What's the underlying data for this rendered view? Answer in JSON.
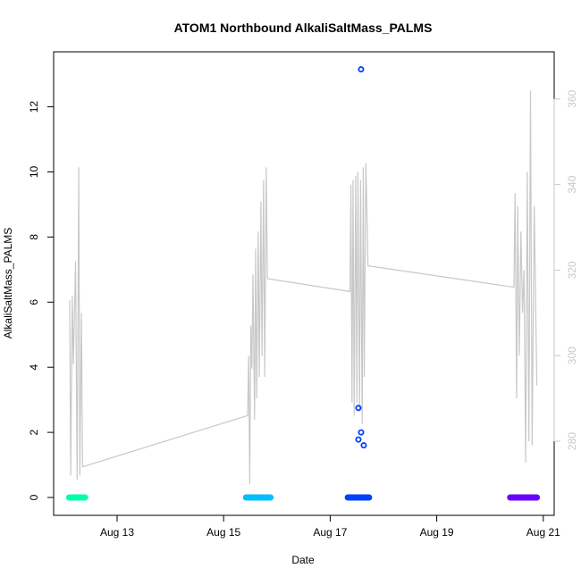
{
  "chart_data": {
    "type": "scatter",
    "title": "ATOM1 Northbound AlkaliSaltMass_PALMS",
    "xlabel": "Date",
    "ylabel": "AlkaliSaltMass_PALMS",
    "x_unit": "days since Aug 12 00:00",
    "xlim": [
      -0.2,
      9.1
    ],
    "ylim": [
      -0.55,
      13.7
    ],
    "y2lim": [
      266,
      367
    ],
    "x_ticks": [
      {
        "x": 1,
        "label": "Aug 13"
      },
      {
        "x": 3,
        "label": "Aug 15"
      },
      {
        "x": 5,
        "label": "Aug 17"
      },
      {
        "x": 7,
        "label": "Aug 19"
      },
      {
        "x": 9,
        "label": "Aug 21"
      }
    ],
    "y_ticks": [
      0,
      2,
      4,
      6,
      8,
      10,
      12
    ],
    "y2_ticks": [
      280,
      300,
      320,
      340,
      360
    ],
    "colors": {
      "axis": "#000000",
      "secondary_line": "#c8c8c8",
      "secondary_axis": "#c8c8c8"
    },
    "point_clusters": [
      {
        "color": "#00ffaa",
        "x_start": 0.1,
        "x_end": 0.4,
        "y": 0
      },
      {
        "color": "#00bfff",
        "x_start": 3.42,
        "x_end": 3.88,
        "y": 0
      },
      {
        "color": "#0040ff",
        "x_start": 5.33,
        "x_end": 5.73,
        "y": 0
      },
      {
        "color": "#6a00ff",
        "x_start": 8.38,
        "x_end": 8.88,
        "y": 0
      }
    ],
    "outliers": [
      {
        "x": 5.58,
        "y": 13.15,
        "color": "#0040ff"
      },
      {
        "x": 5.53,
        "y": 2.75,
        "color": "#0040ff"
      },
      {
        "x": 5.58,
        "y": 2.0,
        "color": "#0040ff"
      },
      {
        "x": 5.53,
        "y": 1.78,
        "color": "#0040ff"
      },
      {
        "x": 5.63,
        "y": 1.6,
        "color": "#0040ff"
      }
    ],
    "secondary_series": [
      [
        0.11,
        313
      ],
      [
        0.13,
        272
      ],
      [
        0.16,
        314
      ],
      [
        0.18,
        298
      ],
      [
        0.22,
        322
      ],
      [
        0.25,
        271
      ],
      [
        0.28,
        344
      ],
      [
        0.3,
        272
      ],
      [
        0.33,
        310
      ],
      [
        0.35,
        274
      ],
      [
        3.45,
        286
      ],
      [
        3.47,
        300
      ],
      [
        3.49,
        270
      ],
      [
        3.51,
        307
      ],
      [
        3.53,
        297
      ],
      [
        3.55,
        319
      ],
      [
        3.58,
        285
      ],
      [
        3.6,
        325
      ],
      [
        3.62,
        290
      ],
      [
        3.65,
        329
      ],
      [
        3.67,
        295
      ],
      [
        3.7,
        336
      ],
      [
        3.72,
        300
      ],
      [
        3.75,
        341
      ],
      [
        3.77,
        295
      ],
      [
        3.8,
        344
      ],
      [
        3.82,
        318
      ],
      [
        5.37,
        315
      ],
      [
        5.39,
        340
      ],
      [
        5.41,
        289
      ],
      [
        5.43,
        341
      ],
      [
        5.45,
        286
      ],
      [
        5.48,
        342
      ],
      [
        5.5,
        289
      ],
      [
        5.52,
        343
      ],
      [
        5.55,
        287
      ],
      [
        5.57,
        341
      ],
      [
        5.6,
        284
      ],
      [
        5.62,
        344
      ],
      [
        5.64,
        295
      ],
      [
        5.67,
        345
      ],
      [
        5.71,
        321
      ],
      [
        8.45,
        316
      ],
      [
        8.47,
        338
      ],
      [
        8.5,
        290
      ],
      [
        8.52,
        335
      ],
      [
        8.55,
        300
      ],
      [
        8.58,
        329
      ],
      [
        8.61,
        310
      ],
      [
        8.64,
        320
      ],
      [
        8.67,
        275
      ],
      [
        8.7,
        343
      ],
      [
        8.73,
        280
      ],
      [
        8.76,
        362
      ],
      [
        8.79,
        279
      ],
      [
        8.83,
        335
      ],
      [
        8.88,
        293
      ]
    ]
  }
}
